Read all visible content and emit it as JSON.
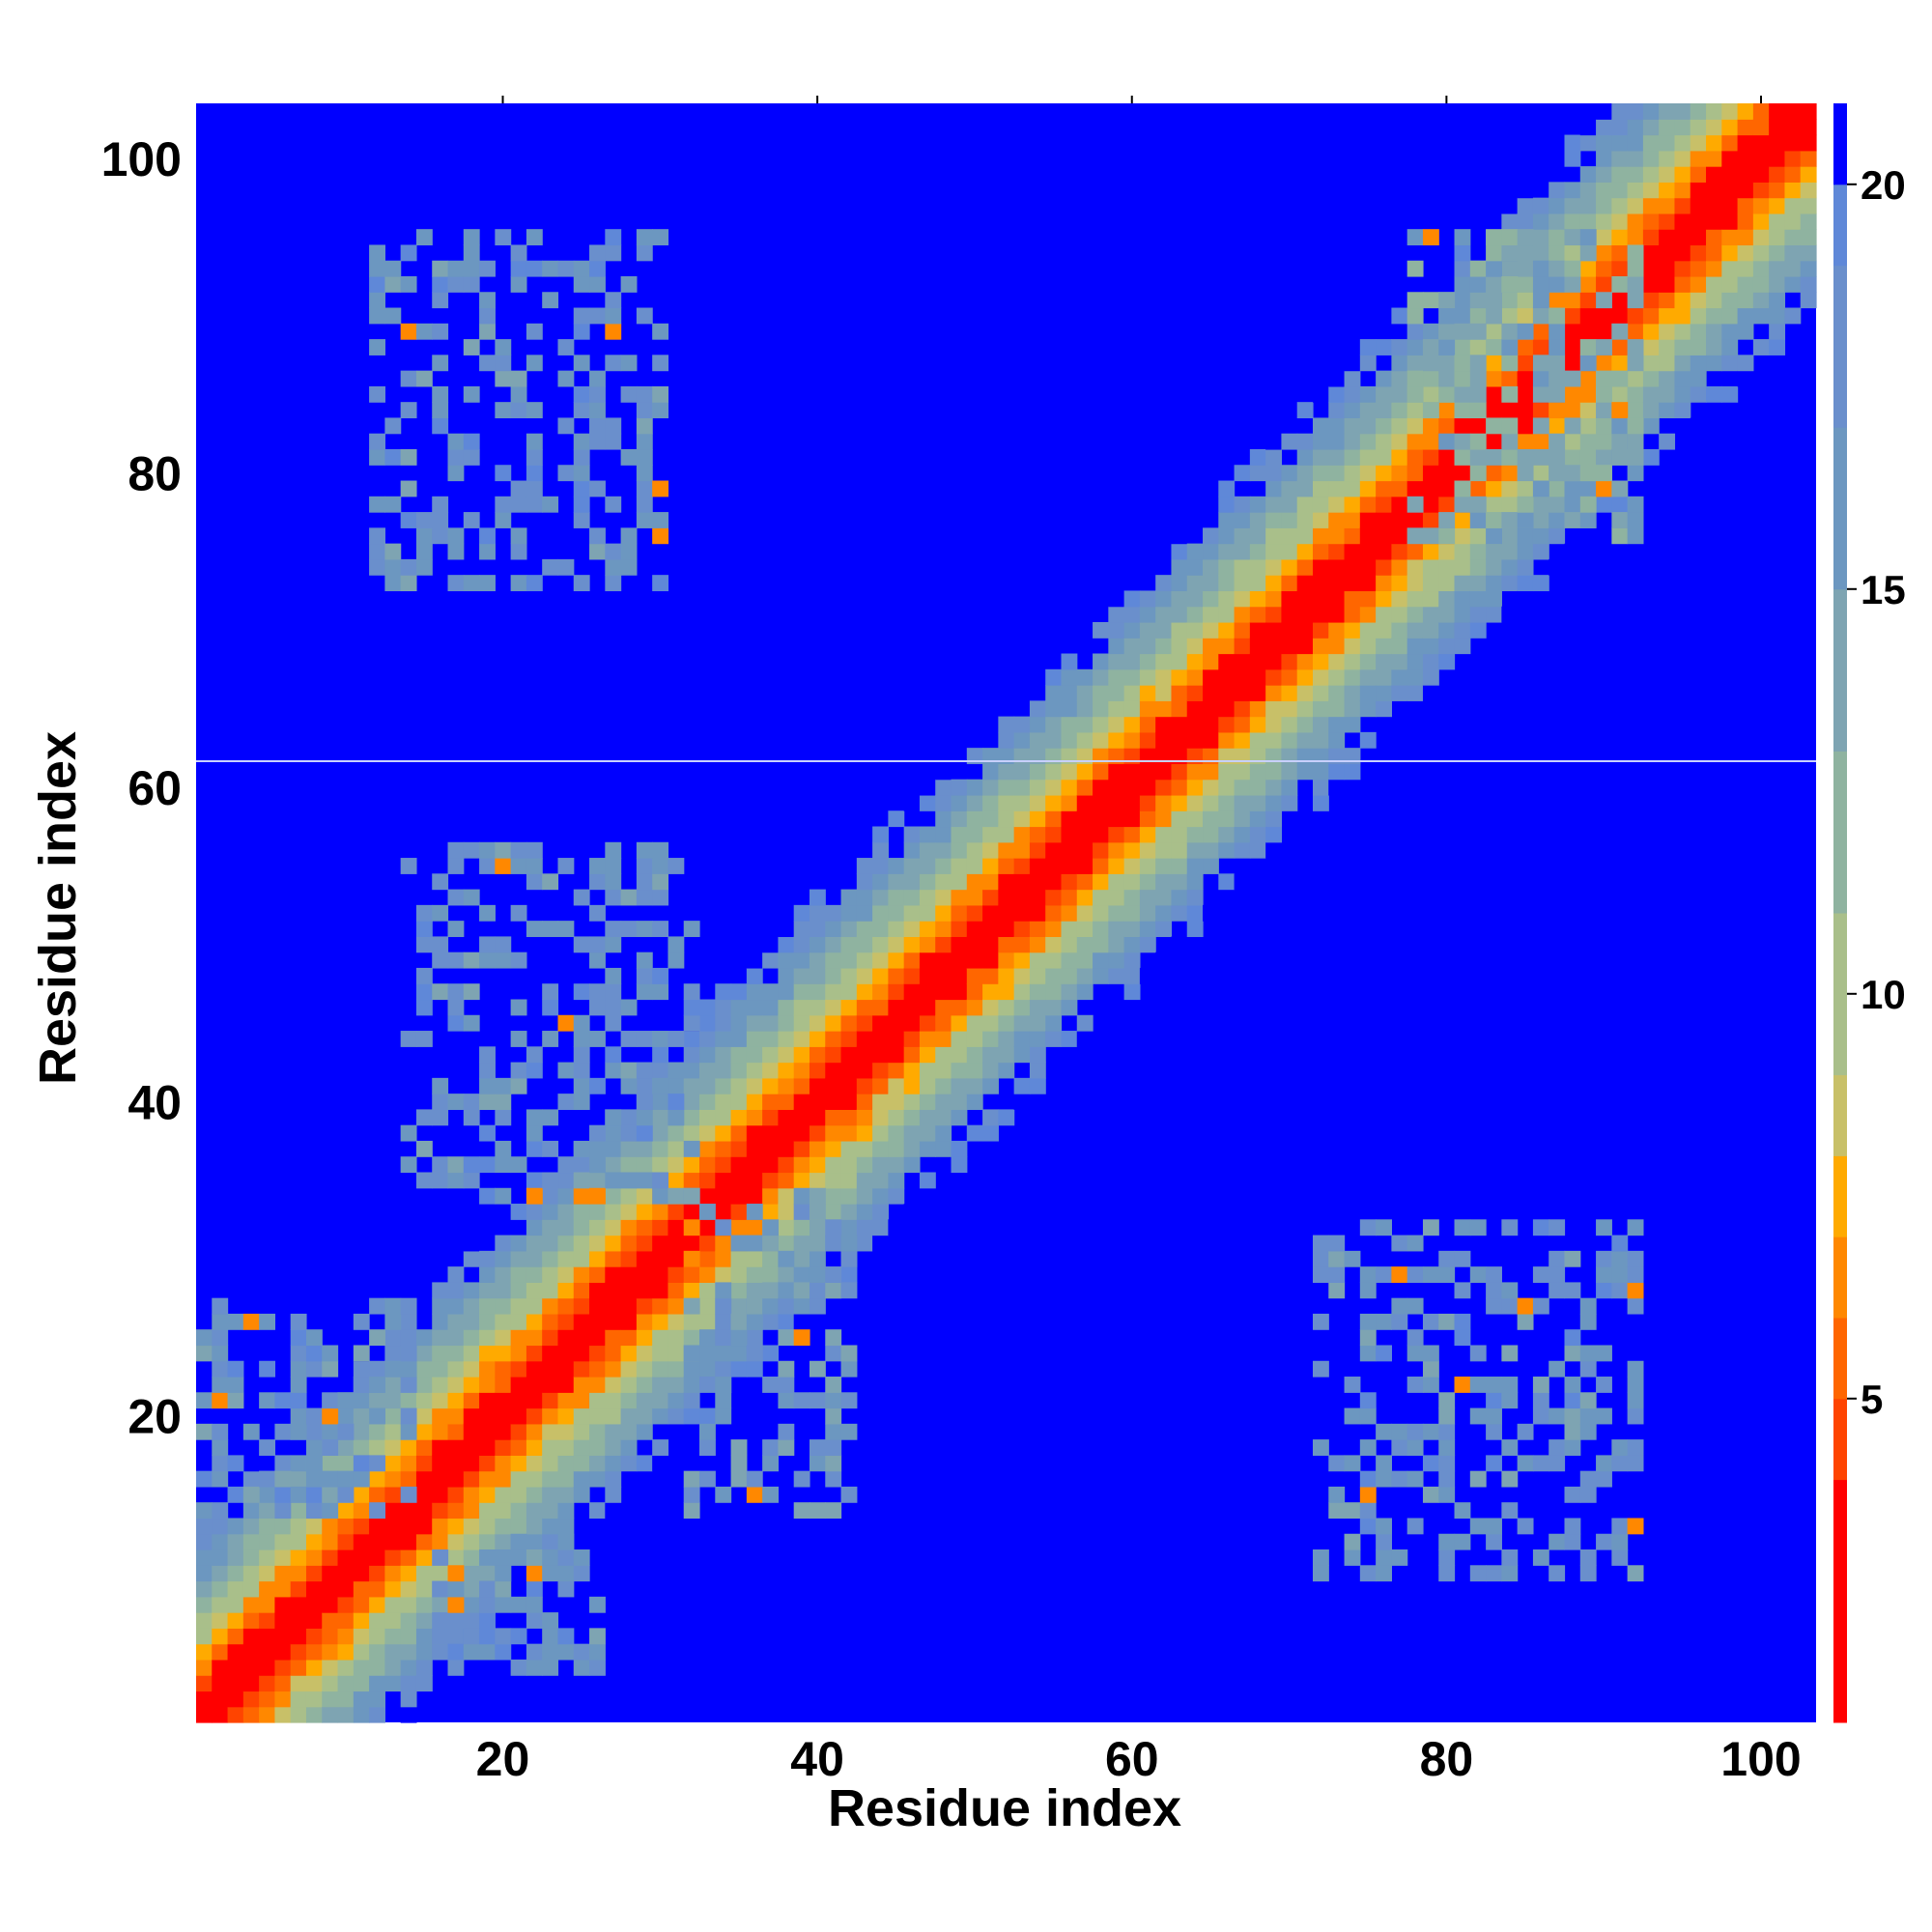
{
  "chart_data": {
    "type": "heatmap",
    "title": "",
    "xlabel": "Residue index",
    "ylabel": "Residue index",
    "xlim": [
      1,
      103
    ],
    "ylim": [
      1,
      103
    ],
    "xticks": [
      "20",
      "40",
      "60",
      "80",
      "100"
    ],
    "yticks": [
      "20",
      "40",
      "60",
      "80",
      "100"
    ],
    "colorbar": {
      "ticks": [
        "5",
        "10",
        "15",
        "20"
      ],
      "range": [
        1,
        21
      ],
      "levels": [
        {
          "max": 4,
          "color": "#ff0000"
        },
        {
          "max": 5,
          "color": "#ff4400"
        },
        {
          "max": 6,
          "color": "#ff6600"
        },
        {
          "max": 7,
          "color": "#ff8800"
        },
        {
          "max": 8,
          "color": "#ffaa00"
        },
        {
          "max": 9,
          "color": "#c8c068"
        },
        {
          "max": 11,
          "color": "#a9bf8a"
        },
        {
          "max": 13,
          "color": "#8fb3a0"
        },
        {
          "max": 15,
          "color": "#7ea4b2"
        },
        {
          "max": 17,
          "color": "#6c97c0"
        },
        {
          "max": 19,
          "color": "#6a8fcc"
        },
        {
          "max": 20,
          "color": "#5f88d8"
        },
        {
          "max": 21,
          "color": "#0000ff"
        }
      ]
    },
    "matrix_description": "symmetric residue distance map: diagonal band of short distances, off-diagonal contact clusters near residues (12-30, 72-95) and (35-57, 10-40)",
    "clusters": [
      {
        "x": [
          12,
          30
        ],
        "y": [
          73,
          95
        ],
        "value": 17
      },
      {
        "x": [
          72,
          92
        ],
        "y": [
          10,
          32
        ],
        "value": 17
      },
      {
        "x": [
          14,
          32
        ],
        "y": [
          34,
          56
        ],
        "value": 17
      },
      {
        "x": [
          32,
          42
        ],
        "y": [
          14,
          34
        ],
        "value": 16
      },
      {
        "x": [
          1,
          14
        ],
        "y": [
          14,
          27
        ],
        "value": 17
      },
      {
        "x": [
          16,
          26
        ],
        "y": [
          4,
          12
        ],
        "value": 17
      },
      {
        "x": [
          78,
          92
        ],
        "y": [
          76,
          95
        ],
        "value": 14
      }
    ],
    "colors": {
      "background": "#0000ff",
      "separator": "#c8d0ff"
    }
  }
}
